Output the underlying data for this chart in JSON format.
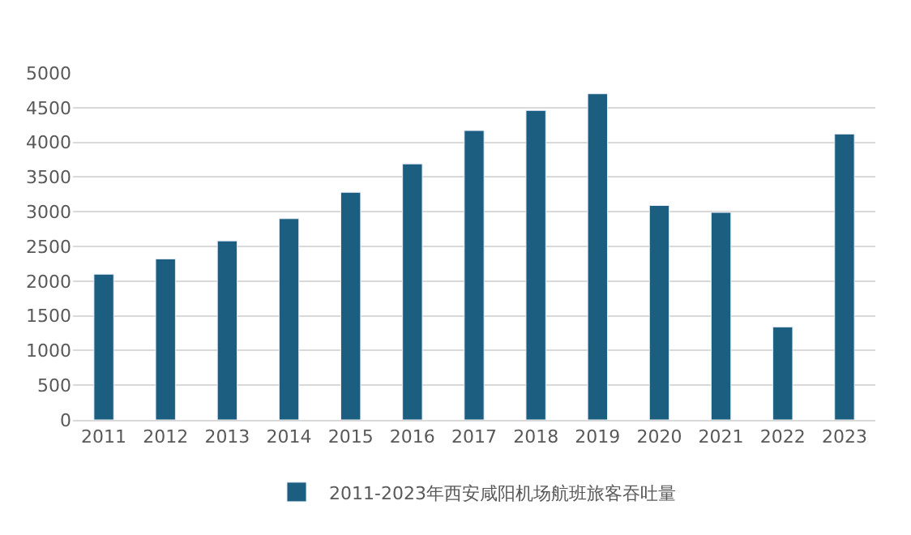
{
  "chart_data": {
    "type": "bar",
    "categories": [
      "2011",
      "2012",
      "2013",
      "2014",
      "2015",
      "2016",
      "2017",
      "2018",
      "2019",
      "2020",
      "2021",
      "2022",
      "2023"
    ],
    "series": [
      {
        "name": "2011-2023年西安咸阳机场航班旅客吞吐量",
        "color": "#1b5e80",
        "values": [
          2100,
          2320,
          2580,
          2900,
          3280,
          3690,
          4170,
          4460,
          4700,
          3090,
          2990,
          1340,
          4120
        ]
      }
    ],
    "ylim": [
      0,
      5000
    ],
    "yticks": [
      0,
      500,
      1000,
      1500,
      2000,
      2500,
      3000,
      3500,
      4000,
      4500,
      5000
    ],
    "grid": "y",
    "legend": "bottom"
  }
}
